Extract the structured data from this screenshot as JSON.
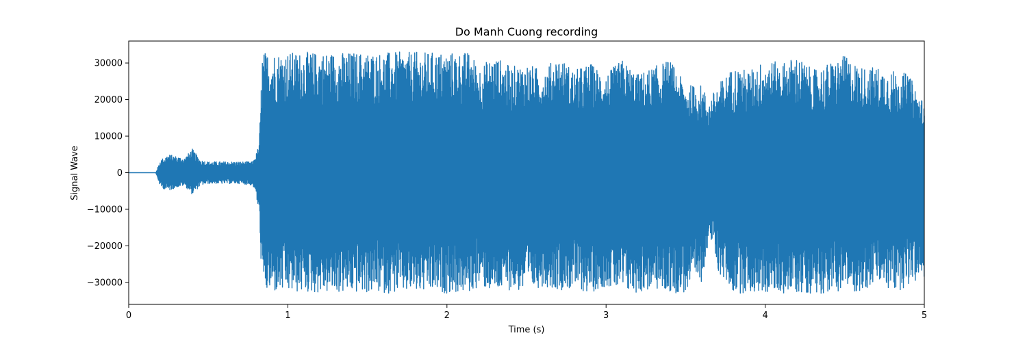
{
  "chart_data": {
    "type": "line",
    "title": "Do Manh Cuong recording",
    "xlabel": "Time (s)",
    "ylabel": "Signal Wave",
    "xlim": [
      0,
      5
    ],
    "ylim": [
      -36000,
      36000
    ],
    "xticks": [
      0,
      1,
      2,
      3,
      4,
      5
    ],
    "yticks": [
      -30000,
      -20000,
      -10000,
      0,
      10000,
      20000,
      30000
    ],
    "xtick_labels": [
      "0",
      "1",
      "2",
      "3",
      "4",
      "5"
    ],
    "ytick_labels": [
      "−30000",
      "−20000",
      "−10000",
      "0",
      "10000",
      "20000",
      "30000"
    ],
    "grid": false,
    "series": [
      {
        "color": "#1f77b4",
        "envelope": {
          "x": [
            0,
            0.17,
            0.2,
            0.25,
            0.3,
            0.35,
            0.4,
            0.45,
            0.5,
            0.6,
            0.7,
            0.78,
            0.8,
            0.82,
            0.84,
            0.86,
            1.0,
            1.2,
            1.4,
            1.6,
            1.8,
            1.95,
            2.0,
            2.1,
            2.15,
            2.2,
            2.3,
            2.4,
            2.5,
            2.6,
            2.7,
            2.8,
            2.9,
            3.0,
            3.1,
            3.2,
            3.3,
            3.4,
            3.5,
            3.6,
            3.65,
            3.7,
            3.8,
            3.9,
            4.0,
            4.1,
            4.2,
            4.3,
            4.4,
            4.5,
            4.6,
            4.7,
            4.8,
            4.9,
            5.0
          ],
          "upper": [
            0,
            0,
            3500,
            5000,
            4500,
            4000,
            6500,
            3500,
            3000,
            3000,
            3000,
            3000,
            5000,
            8000,
            33000,
            33000,
            33000,
            33000,
            33000,
            33000,
            33000,
            33000,
            33000,
            33000,
            33000,
            29000,
            32000,
            29000,
            30000,
            28000,
            32000,
            28000,
            30000,
            27000,
            31000,
            27000,
            29000,
            31000,
            24000,
            24000,
            20000,
            24000,
            29000,
            28000,
            31000,
            30000,
            32000,
            28000,
            30000,
            32000,
            29000,
            29000,
            28000,
            27000,
            19000
          ],
          "lower": [
            0,
            0,
            -4000,
            -5000,
            -4000,
            -3500,
            -6000,
            -3500,
            -3000,
            -3000,
            -3000,
            -3500,
            -6000,
            -12000,
            -33000,
            -33000,
            -33000,
            -33000,
            -33000,
            -33000,
            -33000,
            -33000,
            -33000,
            -33000,
            -33000,
            -31000,
            -33000,
            -32000,
            -33000,
            -31000,
            -32000,
            -32000,
            -33000,
            -31000,
            -33000,
            -33000,
            -32000,
            -33000,
            -33000,
            -30000,
            -17000,
            -27000,
            -33000,
            -33000,
            -33000,
            -33000,
            -33000,
            -33000,
            -33000,
            -32000,
            -33000,
            -30000,
            -33000,
            -31000,
            -29000
          ]
        }
      }
    ]
  }
}
